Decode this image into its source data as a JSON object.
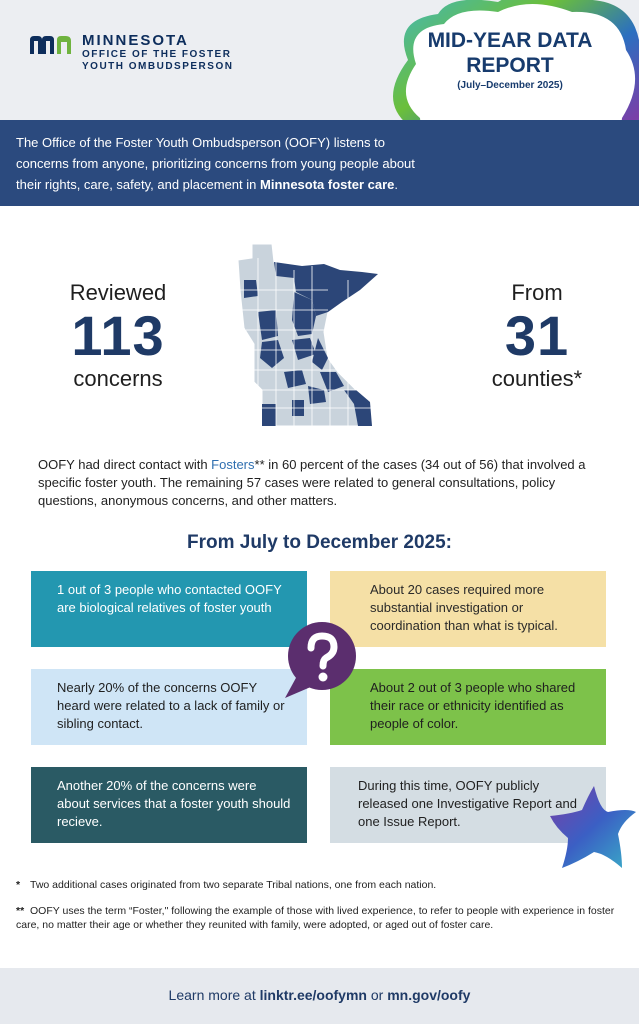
{
  "header": {
    "state": "MINNESOTA",
    "office_line1": "OFFICE OF THE FOSTER",
    "office_line2": "YOUTH OMBUDSPERSON",
    "report_title_line1": "MID-YEAR DATA",
    "report_title_line2": "REPORT",
    "report_period": "(July–December 2025)"
  },
  "intro": {
    "text_before": "The Office of the Foster Youth Ombudsperson (OOFY) listens to concerns from anyone, prioritizing concerns from young people about their rights, care, safety, and placement in ",
    "text_bold": "Minnesota foster care",
    "text_after": "."
  },
  "stats": {
    "left_label": "Reviewed",
    "left_number": "113",
    "left_unit": "concerns",
    "right_label": "From",
    "right_number": "31",
    "right_unit": "counties*"
  },
  "contact": {
    "before": "OOFY had direct contact with ",
    "highlight": "Fosters",
    "after": "** in 60 percent of the cases (34 out of 56) that involved a specific foster youth. The remaining 57 cases were related to general consultations, policy questions, anonymous concerns, and other matters."
  },
  "period_heading": "From July to December 2025:",
  "boxes": [
    {
      "text": "1 out of 3 people who contacted OOFY are biological relatives of foster youth"
    },
    {
      "text": "About 20 cases required more substantial investigation or coordination than what is typical."
    },
    {
      "text": "Nearly 20% of the concerns OOFY heard were related to a lack of family or sibling contact."
    },
    {
      "text": "About 2 out of 3 people who shared their race or ethnicity identified as people of color."
    },
    {
      "text": "Another 20% of the concerns were about services that a foster youth should recieve."
    },
    {
      "text": "During this time, OOFY publicly released one Investigative Report and one Issue Report."
    }
  ],
  "notes": {
    "note1_marker": "*",
    "note1_text": "Two additional cases originated from two separate Tribal nations, one from each nation.",
    "note2_marker": "**",
    "note2_text": "OOFY uses the term “Foster,\" following the example of those with lived experience, to refer to people with experience in foster care, no matter their age or whether they reunited with family, were adopted, or aged out of foster care."
  },
  "footer": {
    "prefix": "Learn more at ",
    "link1": "linktr.ee/oofymn",
    "middle": " or ",
    "link2": "mn.gov/oofy"
  },
  "icons": {
    "logo": "minnesota-logo-icon",
    "map": "minnesota-county-map-icon",
    "question": "question-bubble-icon",
    "star": "star-decoration-icon",
    "cloud": "cloud-decoration-icon"
  },
  "colors": {
    "navy": "#1f3a66",
    "intro_band": "#2b4a7e",
    "teal": "#2397b0",
    "sand": "#f5e0a6",
    "light_blue": "#cfe5f6",
    "green": "#7dc24a",
    "dark_teal": "#2a5a64",
    "gray_blue": "#d4dde3",
    "purple": "#5b2e6e"
  }
}
